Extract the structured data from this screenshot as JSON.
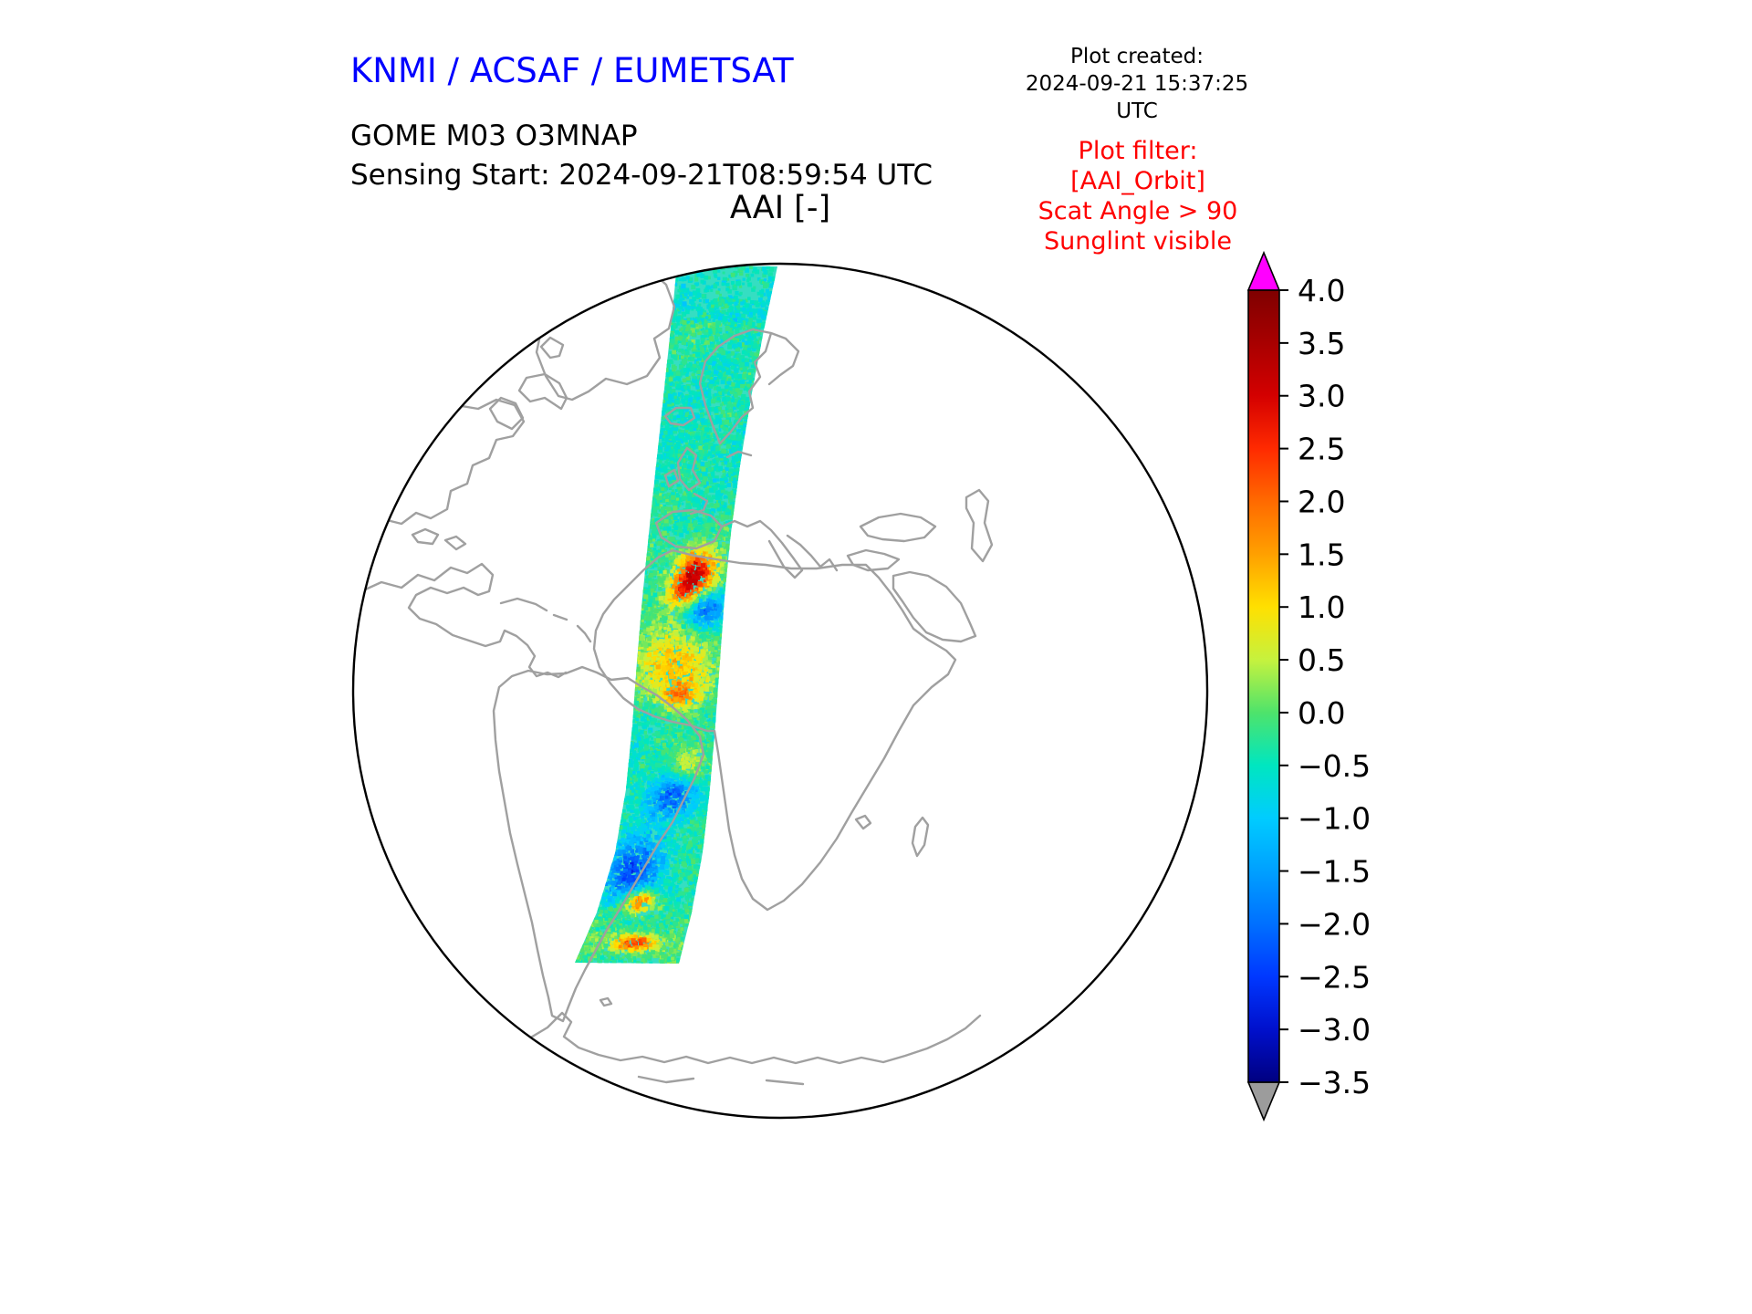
{
  "header": {
    "brand": "KNMI / ACSAF / EUMETSAT",
    "brand_color": "#0000ff",
    "created_label": "Plot created:",
    "created_value": "2024-09-21 15:37:25 UTC",
    "product": "GOME M03 O3MNAP",
    "sensing_start": "Sensing Start: 2024-09-21T08:59:54 UTC",
    "axes_title": "AAI [-]"
  },
  "plot_filter": {
    "color": "#ff0000",
    "lines": [
      "Plot filter:",
      "[AAI_Orbit]",
      "Scat Angle > 90",
      "Sunglint visible"
    ]
  },
  "chart_data": {
    "type": "heatmap",
    "title": "AAI [-]",
    "projection": "orthographic",
    "region": "Atlantic hemisphere: Americas, Greenland, Europe, Africa, Antarctica",
    "colorbar": {
      "orientation": "vertical",
      "side": "right",
      "vmin": -3.5,
      "vmax": 4.0,
      "tick_step": 0.5,
      "tick_labels": [
        "4.0",
        "3.5",
        "3.0",
        "2.5",
        "2.0",
        "1.5",
        "1.0",
        "0.5",
        "0.0",
        "−0.5",
        "−1.0",
        "−1.5",
        "−2.0",
        "−2.5",
        "−3.0",
        "−3.5"
      ],
      "over_arrow_color": "#ff00ff",
      "under_arrow_color": "#9c9c9c",
      "stops": [
        {
          "v": 4.0,
          "c": "#7f0000"
        },
        {
          "v": 3.5,
          "c": "#a80000"
        },
        {
          "v": 3.0,
          "c": "#d40000"
        },
        {
          "v": 2.5,
          "c": "#ff2a00"
        },
        {
          "v": 2.0,
          "c": "#ff6a00"
        },
        {
          "v": 1.5,
          "c": "#ffa000"
        },
        {
          "v": 1.0,
          "c": "#ffe000"
        },
        {
          "v": 0.5,
          "c": "#c6f23e"
        },
        {
          "v": 0.0,
          "c": "#4ee36b"
        },
        {
          "v": -0.5,
          "c": "#00e6c0"
        },
        {
          "v": -1.0,
          "c": "#00ccff"
        },
        {
          "v": -1.5,
          "c": "#00a0ff"
        },
        {
          "v": -2.0,
          "c": "#0070ff"
        },
        {
          "v": -2.5,
          "c": "#0038ff"
        },
        {
          "v": -3.0,
          "c": "#0010cc"
        },
        {
          "v": -3.5,
          "c": "#000080"
        }
      ]
    },
    "swath": {
      "description": "Single descending orbit swath from the Arctic over Scandinavia, western Europe and NW Africa, down the Atlantic toward the Southern Ocean; background AAI mostly between -1.0 and +0.5 (cyan/green speckle)",
      "background_value": -0.3,
      "features": [
        {
          "note": "strong dust plume over Morocco / NW Africa",
          "value": 2.5,
          "t": 0.418,
          "u": 0.25,
          "amp": 3.0,
          "st": 0.022,
          "su": 0.33
        },
        {
          "note": "secondary dust patch",
          "value": 1.5,
          "t": 0.447,
          "u": 0.0,
          "amp": 1.8,
          "st": 0.016,
          "su": 0.3
        },
        {
          "note": "low AAI (deep blue) patch east side",
          "value": -1.5,
          "t": 0.472,
          "u": 0.55,
          "amp": -2.0,
          "st": 0.018,
          "su": 0.35
        },
        {
          "note": "mild positive band near Sahara edge",
          "value": 0.8,
          "t": 0.556,
          "u": -0.05,
          "amp": 1.6,
          "st": 0.035,
          "su": 0.6
        },
        {
          "note": "small positive patch",
          "value": 0.8,
          "t": 0.595,
          "u": 0.1,
          "amp": 1.4,
          "st": 0.012,
          "su": 0.3
        },
        {
          "note": "yellowish patch mid Atlantic",
          "value": 0.6,
          "t": 0.692,
          "u": 0.5,
          "amp": 1.2,
          "st": 0.02,
          "su": 0.3
        },
        {
          "note": "negative patch mid Atlantic",
          "value": -1.2,
          "t": 0.737,
          "u": 0.15,
          "amp": -1.6,
          "st": 0.02,
          "su": 0.4
        },
        {
          "note": "blue cloud-edge swirls South Atlantic",
          "value": -1.8,
          "t": 0.847,
          "u": -0.45,
          "amp": -2.0,
          "st": 0.035,
          "su": 0.45
        },
        {
          "note": "bright positive spots",
          "value": 2.0,
          "t": 0.893,
          "u": -0.15,
          "amp": 2.6,
          "st": 0.012,
          "su": 0.22
        },
        {
          "note": "positive patch near swath end",
          "value": 2.2,
          "t": 0.964,
          "u": 0.0,
          "amp": 2.8,
          "st": 0.01,
          "su": 0.3
        }
      ]
    },
    "map_colors": {
      "coastline": "#a0a0a0",
      "globe_outline": "#000000",
      "background": "#ffffff"
    }
  }
}
